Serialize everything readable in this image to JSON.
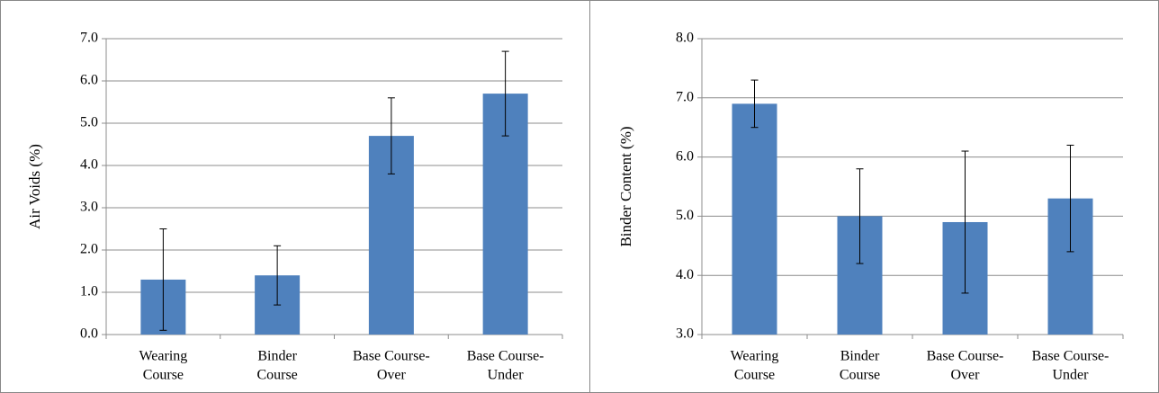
{
  "chart_data": [
    {
      "type": "bar",
      "ylabel": "Air Voids (%)",
      "categories": [
        [
          "Wearing",
          "Course"
        ],
        [
          "Binder",
          "Course"
        ],
        [
          "Base Course-",
          "Over"
        ],
        [
          "Base Course-",
          "Under"
        ]
      ],
      "values": [
        1.3,
        1.4,
        4.7,
        5.7
      ],
      "errors": [
        1.2,
        0.7,
        0.9,
        1.0
      ],
      "color": "#4f81bd",
      "ylim": [
        0,
        7
      ],
      "yticks": [
        {
          "value": 0,
          "label": "0.0"
        },
        {
          "value": 1,
          "label": "1.0"
        },
        {
          "value": 2,
          "label": "2.0"
        },
        {
          "value": 3,
          "label": "3.0"
        },
        {
          "value": 4,
          "label": "4.0"
        },
        {
          "value": 5,
          "label": "5.0"
        },
        {
          "value": 6,
          "label": "6.0"
        },
        {
          "value": 7,
          "label": "7.0"
        }
      ],
      "grid": true
    },
    {
      "type": "bar",
      "ylabel": "Binder Content (%)",
      "categories": [
        [
          "Wearing",
          "Course"
        ],
        [
          "Binder",
          "Course"
        ],
        [
          "Base Course-",
          "Over"
        ],
        [
          "Base Course-",
          "Under"
        ]
      ],
      "values": [
        6.9,
        5.0,
        4.9,
        5.3
      ],
      "errors": [
        0.4,
        0.8,
        1.2,
        0.9
      ],
      "color": "#4f81bd",
      "ylim": [
        3,
        8
      ],
      "yticks": [
        {
          "value": 3,
          "label": "3.0"
        },
        {
          "value": 4,
          "label": "4.0"
        },
        {
          "value": 5,
          "label": "5.0"
        },
        {
          "value": 6,
          "label": "6.0"
        },
        {
          "value": 7,
          "label": "7.0"
        },
        {
          "value": 8,
          "label": "8.0"
        }
      ],
      "grid": true
    }
  ]
}
